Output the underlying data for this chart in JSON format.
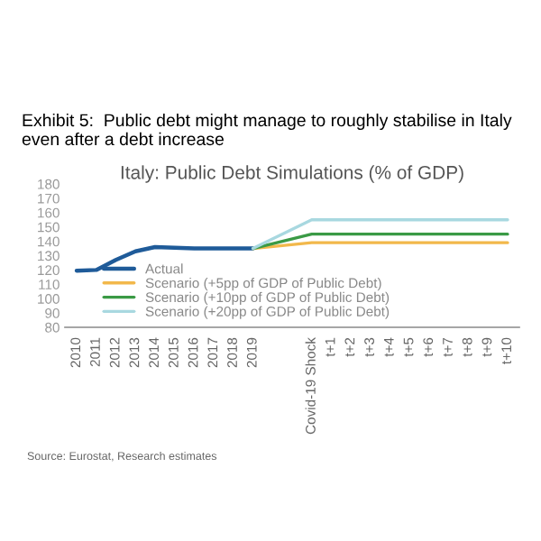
{
  "chart_data": {
    "type": "line",
    "title": "Exhibit 5:  Public debt might manage to roughly stabilise in Italy even after a debt increase",
    "subtitle": "Italy: Public Debt Simulations (% of GDP)",
    "categories": [
      "2010",
      "2011",
      "2012",
      "2013",
      "2014",
      "2015",
      "2016",
      "2017",
      "2018",
      "2019",
      null,
      null,
      "Covid-19 Shock",
      "t+1",
      "t+2",
      "t+3",
      "t+4",
      "t+5",
      "t+6",
      "t+7",
      "t+8",
      "t+9",
      "t+10"
    ],
    "series": [
      {
        "name": "Actual",
        "color": "#1f5b99",
        "values": [
          119.5,
          120,
          127,
          133,
          136,
          135.5,
          135,
          135,
          135,
          135,
          null,
          null,
          null,
          null,
          null,
          null,
          null,
          null,
          null,
          null,
          null,
          null,
          null
        ]
      },
      {
        "name": "Scenario (+5pp of GDP of Public Debt)",
        "color": "#f2b84b",
        "values": [
          null,
          null,
          null,
          null,
          null,
          null,
          null,
          null,
          null,
          135,
          null,
          null,
          139,
          139,
          139,
          139,
          139,
          139,
          139,
          139,
          139,
          139,
          139
        ]
      },
      {
        "name": "Scenario (+10pp of GDP of Public Debt)",
        "color": "#3a9a45",
        "values": [
          null,
          null,
          null,
          null,
          null,
          null,
          null,
          null,
          null,
          135,
          null,
          null,
          145,
          145,
          145,
          145,
          145,
          145,
          145,
          145,
          145,
          145,
          145
        ]
      },
      {
        "name": "Scenario (+20pp of GDP of Public Debt)",
        "color": "#a8d8e0",
        "values": [
          null,
          null,
          null,
          null,
          null,
          null,
          null,
          null,
          null,
          135,
          null,
          null,
          155,
          155,
          155,
          155,
          155,
          155,
          155,
          155,
          155,
          155,
          155
        ]
      }
    ],
    "ylim": [
      80,
      180
    ],
    "yticks": [
      80,
      90,
      100,
      110,
      120,
      130,
      140,
      150,
      160,
      170,
      180
    ],
    "grid": false,
    "legend": "bottom",
    "annotations": [
      "Source: Eurostat, Research estimates"
    ]
  }
}
